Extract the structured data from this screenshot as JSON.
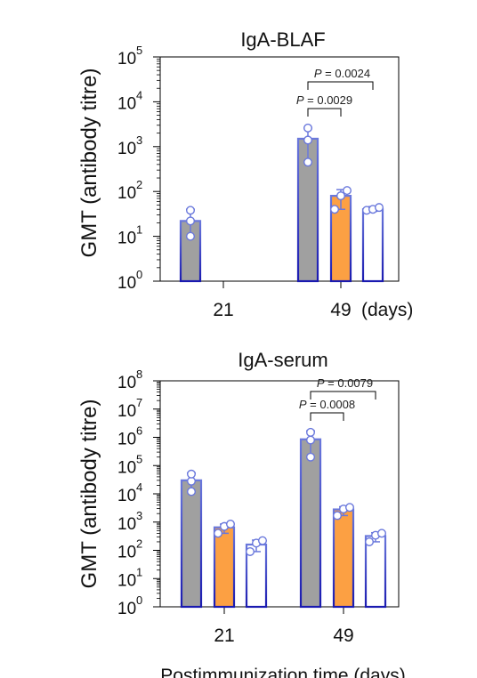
{
  "colors": {
    "group1_fill": "#a0a0a0",
    "group2_fill": "#fca043",
    "group3_fill": "#ffffff",
    "edge_top": "#5a6bd6",
    "edge_bottom": "#1a1ab0",
    "point": "#6a78dc"
  },
  "x_axis_label": "Postimmunization time (days)",
  "chart_data": [
    {
      "type": "bar",
      "title": "IgA-BLAF",
      "ylabel": "GMT (antibody titre)",
      "y_scale": "log10",
      "ylim": [
        1,
        100000
      ],
      "y_ticks": [
        {
          "base": "10",
          "exp": "0"
        },
        {
          "base": "10",
          "exp": "1"
        },
        {
          "base": "10",
          "exp": "2"
        },
        {
          "base": "10",
          "exp": "3"
        },
        {
          "base": "10",
          "exp": "4"
        },
        {
          "base": "10",
          "exp": "5"
        }
      ],
      "categories": [
        "21",
        "49"
      ],
      "category_unit": "(days)",
      "groups_per_category": 3,
      "bars": [
        {
          "category": "21",
          "group": 1,
          "value": 22,
          "err": [
            10,
            40
          ],
          "points": [
            10,
            22,
            38
          ]
        },
        {
          "category": "49",
          "group": 1,
          "value": 1500,
          "err": [
            450,
            2600
          ],
          "points": [
            450,
            1400,
            2600
          ]
        },
        {
          "category": "49",
          "group": 2,
          "value": 80,
          "err": [
            40,
            110
          ],
          "points": [
            40,
            80,
            105
          ]
        },
        {
          "category": "49",
          "group": 3,
          "value": 40,
          "err": [
            36,
            46
          ],
          "points": [
            38,
            40,
            44
          ]
        }
      ],
      "comparisons": [
        {
          "text": "P = 0.0029",
          "from_group": 1,
          "to_group": 2,
          "category": "49"
        },
        {
          "text": "P = 0.0024",
          "from_group": 1,
          "to_group": 3,
          "category": "49"
        }
      ]
    },
    {
      "type": "bar",
      "title": "IgA-serum",
      "ylabel": "GMT (antibody titre)",
      "y_scale": "log10",
      "ylim": [
        1,
        100000000
      ],
      "y_ticks": [
        {
          "base": "10",
          "exp": "0"
        },
        {
          "base": "10",
          "exp": "1"
        },
        {
          "base": "10",
          "exp": "2"
        },
        {
          "base": "10",
          "exp": "3"
        },
        {
          "base": "10",
          "exp": "4"
        },
        {
          "base": "10",
          "exp": "5"
        },
        {
          "base": "10",
          "exp": "6"
        },
        {
          "base": "10",
          "exp": "7"
        },
        {
          "base": "10",
          "exp": "8"
        }
      ],
      "categories": [
        "21",
        "49"
      ],
      "category_unit": "",
      "groups_per_category": 3,
      "bars": [
        {
          "category": "21",
          "group": 1,
          "value": 30000,
          "err": [
            12000,
            55000
          ],
          "points": [
            12000,
            28000,
            50000
          ]
        },
        {
          "category": "21",
          "group": 2,
          "value": 650,
          "err": [
            400,
            850
          ],
          "points": [
            400,
            700,
            850
          ]
        },
        {
          "category": "21",
          "group": 3,
          "value": 160,
          "err": [
            90,
            230
          ],
          "points": [
            90,
            180,
            220
          ]
        },
        {
          "category": "49",
          "group": 1,
          "value": 850000,
          "err": [
            200000,
            1700000
          ],
          "points": [
            200000,
            800000,
            1500000
          ]
        },
        {
          "category": "49",
          "group": 2,
          "value": 2800,
          "err": [
            1700,
            3500
          ],
          "points": [
            1700,
            2900,
            3300
          ]
        },
        {
          "category": "49",
          "group": 3,
          "value": 320,
          "err": [
            200,
            420
          ],
          "points": [
            200,
            340,
            400
          ]
        }
      ],
      "comparisons": [
        {
          "text": "P = 0.0008",
          "from_group": 1,
          "to_group": 2,
          "category": "49"
        },
        {
          "text": "P = 0.0079",
          "from_group": 1,
          "to_group": 3,
          "category": "49"
        }
      ]
    }
  ]
}
